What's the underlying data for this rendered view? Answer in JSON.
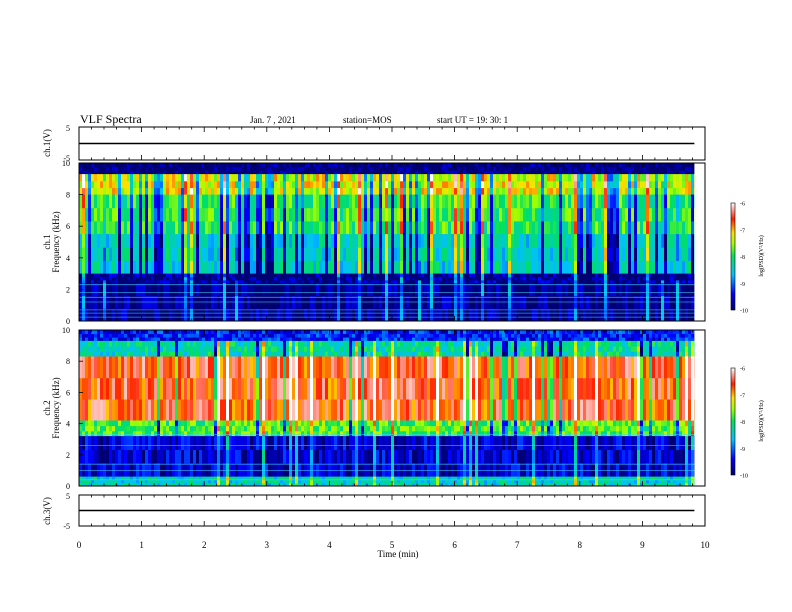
{
  "header": {
    "title": "VLF Spectra",
    "date": "Jan. 7 , 2021",
    "station": "station=MOS",
    "start": "start  UT =   19: 30: 1"
  },
  "chart_data": [
    {
      "type": "line",
      "name": "ch1-waveform",
      "ylabel": "ch.1(V)",
      "ylim": [
        -5,
        5
      ],
      "yticks": [
        "5",
        "-5"
      ],
      "x": [
        0,
        9.83
      ],
      "y": [
        0,
        0
      ]
    },
    {
      "type": "heatmap",
      "name": "ch1-spectrogram",
      "ylabel": [
        "ch.1",
        "Frequency  (kHz)"
      ],
      "ylim": [
        0,
        10
      ],
      "yticks": [
        "0",
        "2",
        "4",
        "6",
        "8",
        "10"
      ],
      "xlim": [
        0,
        10
      ],
      "data_end_min": 9.83,
      "colorbar": {
        "label": "log(PSD)(V²/Hz)",
        "range": [
          -10,
          -6
        ],
        "ticks": [
          "-6",
          "-7",
          "-8",
          "-9",
          "-10"
        ]
      },
      "bands": [
        {
          "f": [
            9.3,
            10.0
          ],
          "level": -10.0
        },
        {
          "f": [
            8.0,
            9.3
          ],
          "level": -7.3
        },
        {
          "f": [
            5.5,
            8.0
          ],
          "level": -7.9
        },
        {
          "f": [
            3.0,
            5.5
          ],
          "level": -8.4
        },
        {
          "f": [
            2.4,
            3.0
          ],
          "level": -9.8
        },
        {
          "f": [
            0.0,
            2.4
          ],
          "level": -9.9
        }
      ],
      "lines_khz": [
        0.25,
        0.5,
        0.7,
        1.2,
        1.5,
        1.8,
        2.3
      ]
    },
    {
      "type": "heatmap",
      "name": "ch2-spectrogram",
      "ylabel": [
        "ch.2",
        "Frequency  (kHz)"
      ],
      "ylim": [
        0,
        10
      ],
      "yticks": [
        "0",
        "2",
        "4",
        "6",
        "8",
        "10"
      ],
      "xlim": [
        0,
        10
      ],
      "data_end_min": 9.83,
      "colorbar": {
        "label": "log(PSD)(V²/Hz)",
        "range": [
          -10,
          -6
        ],
        "ticks": [
          "-6",
          "-7",
          "-8",
          "-9",
          "-10"
        ]
      },
      "bands": [
        {
          "f": [
            9.3,
            10.0
          ],
          "level": -9.3
        },
        {
          "f": [
            8.3,
            9.3
          ],
          "level": -8.3
        },
        {
          "f": [
            4.2,
            8.3
          ],
          "level": -6.6
        },
        {
          "f": [
            3.2,
            4.2
          ],
          "level": -7.8
        },
        {
          "f": [
            0.6,
            3.2
          ],
          "level": -9.6
        },
        {
          "f": [
            0.0,
            0.6
          ],
          "level": -8.4
        }
      ],
      "lines_khz": [
        0.4,
        1.0,
        1.4,
        2.6,
        3.3
      ]
    },
    {
      "type": "line",
      "name": "ch3-waveform",
      "ylabel": "ch.3(V)",
      "ylim": [
        -5,
        5
      ],
      "yticks": [
        "5",
        "-5"
      ],
      "x": [
        0,
        9.83
      ],
      "y": [
        0,
        0
      ]
    }
  ],
  "xaxis": {
    "label": "Time  (min)",
    "ticks": [
      "0",
      "1",
      "2",
      "3",
      "4",
      "5",
      "6",
      "7",
      "8",
      "9",
      "10"
    ]
  }
}
